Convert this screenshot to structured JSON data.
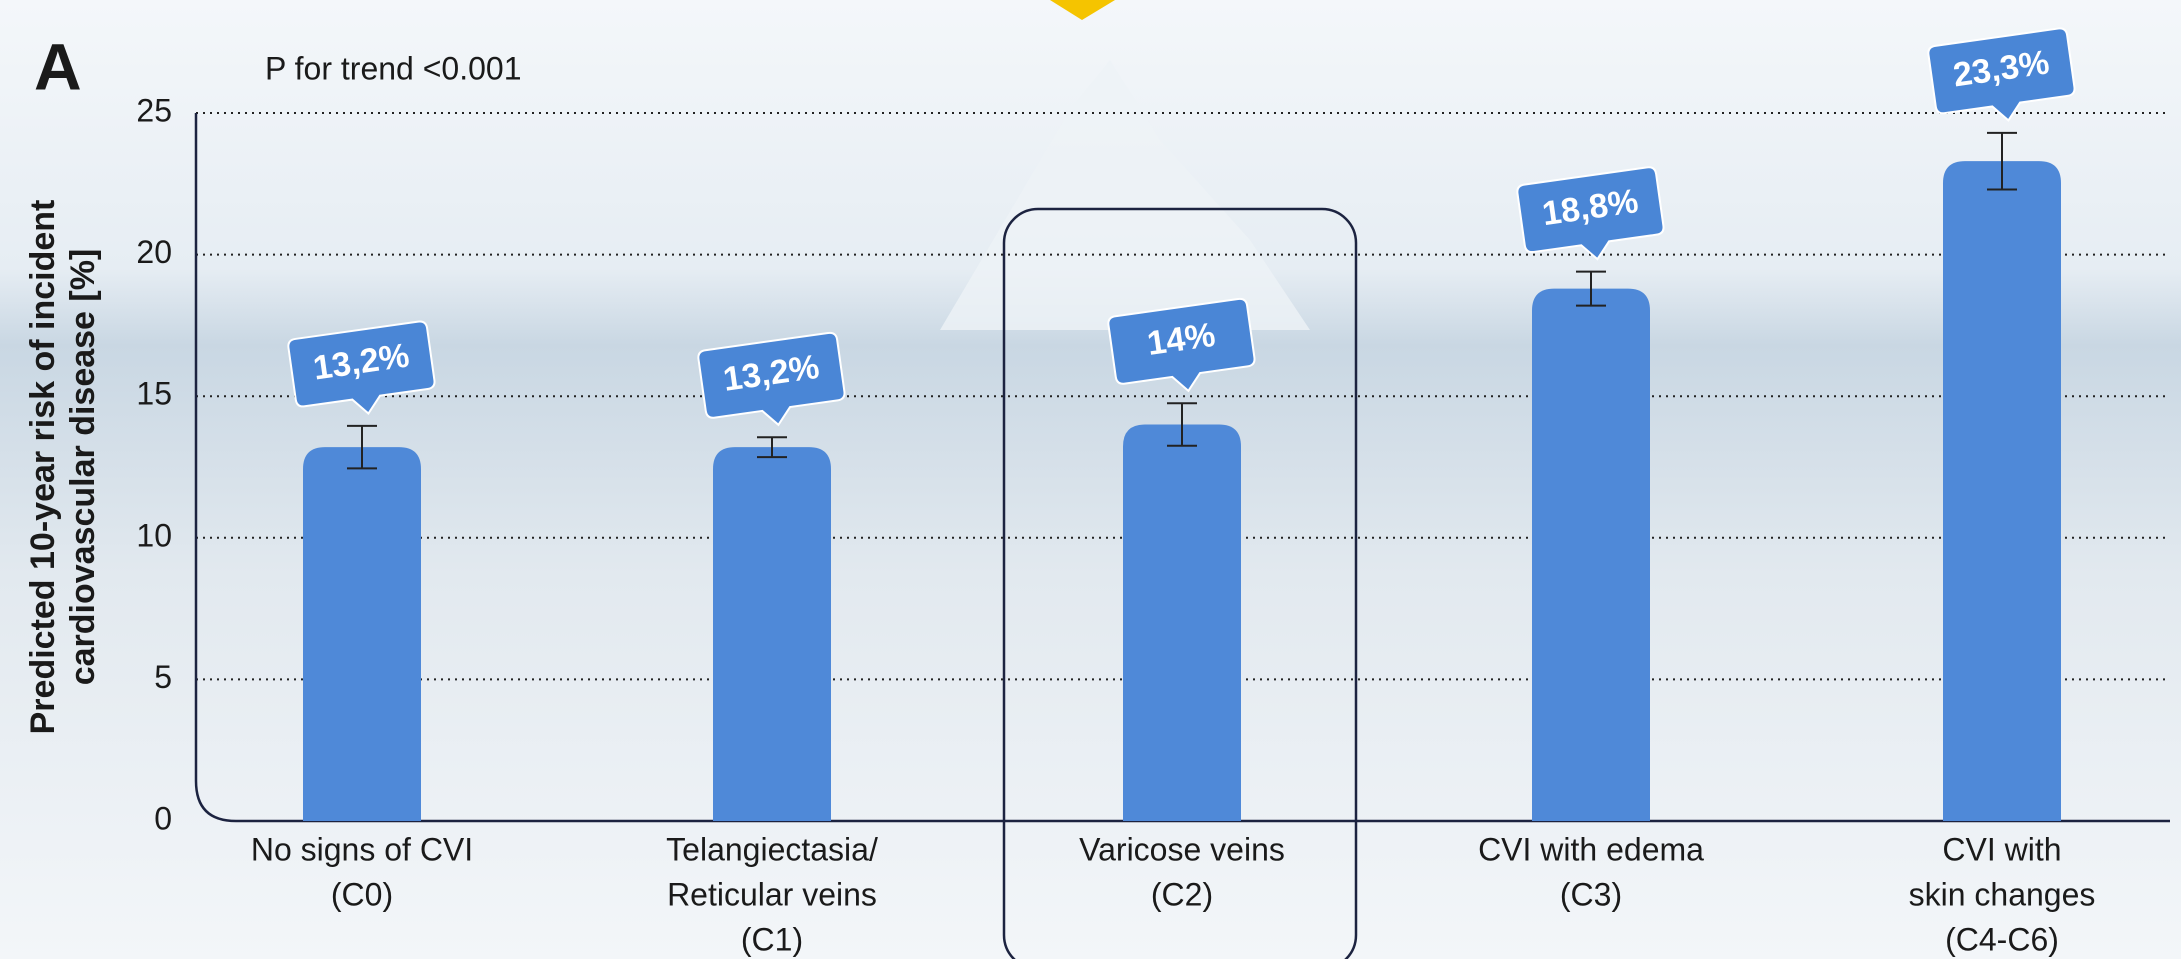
{
  "chart_data": {
    "type": "bar",
    "panel_label": "A",
    "annotation": "P for trend <0.001",
    "y_label": [
      "Predicted 10-year risk of incident",
      "cardiovascular disease [%]"
    ],
    "categories": [
      [
        "No signs of CVI",
        "(C0)"
      ],
      [
        "Telangiectasia/",
        "Reticular veins",
        "(C1)"
      ],
      [
        "Varicose veins",
        "(C2)"
      ],
      [
        "CVI with edema",
        "(C3)"
      ],
      [
        "CVI with",
        "skin changes",
        "(C4-C6)"
      ]
    ],
    "values": [
      13.2,
      13.2,
      14,
      18.8,
      23.3
    ],
    "value_labels": [
      "13,2%",
      "13,2%",
      "14%",
      "18,8%",
      "23,3%"
    ],
    "errors": [
      0.75,
      0.35,
      0.75,
      0.6,
      1.0
    ],
    "color": "#4f89d8",
    "ylim": [
      0,
      25
    ],
    "yticks": [
      0,
      5,
      10,
      15,
      20,
      25
    ],
    "grid": true
  }
}
